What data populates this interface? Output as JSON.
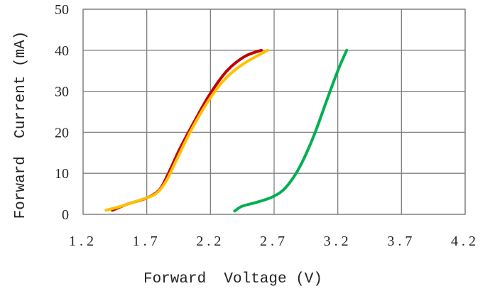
{
  "chart_data": {
    "type": "line",
    "xlabel": "Forward  Voltage (V)",
    "ylabel": "Forward  Current (mA)",
    "xlim": [
      1.2,
      4.2
    ],
    "ylim": [
      0,
      50
    ],
    "xticks": [
      1.2,
      1.7,
      2.2,
      2.7,
      3.2,
      3.7,
      4.2
    ],
    "xtick_labels": [
      "1.2",
      "1.7",
      "2.2",
      "2.7",
      "3.2",
      "3.7",
      "4.2"
    ],
    "yticks": [
      0,
      10,
      20,
      30,
      40,
      50
    ],
    "ytick_labels": [
      "0",
      "10",
      "20",
      "30",
      "40",
      "50"
    ],
    "grid": true,
    "series": [
      {
        "color": "#c00000",
        "x": [
          1.43,
          1.55,
          1.7,
          1.8,
          1.87,
          1.96,
          2.08,
          2.2,
          2.33,
          2.47,
          2.6
        ],
        "y": [
          1,
          2.5,
          4,
          6,
          10,
          16,
          23,
          29.5,
          35,
          38.5,
          40
        ]
      },
      {
        "color": "#ffc000",
        "x": [
          1.38,
          1.5,
          1.65,
          1.77,
          1.85,
          1.93,
          2.04,
          2.17,
          2.3,
          2.45,
          2.65
        ],
        "y": [
          1,
          2,
          3.5,
          5,
          8,
          13,
          20,
          27,
          32.5,
          36.5,
          40
        ]
      },
      {
        "color": "#00b050",
        "x": [
          2.39,
          2.45,
          2.57,
          2.69,
          2.79,
          2.9,
          3.01,
          3.11,
          3.2,
          3.27
        ],
        "y": [
          0.8,
          2,
          3,
          4.3,
          6.5,
          11.5,
          19,
          27.5,
          35,
          40
        ]
      }
    ]
  }
}
